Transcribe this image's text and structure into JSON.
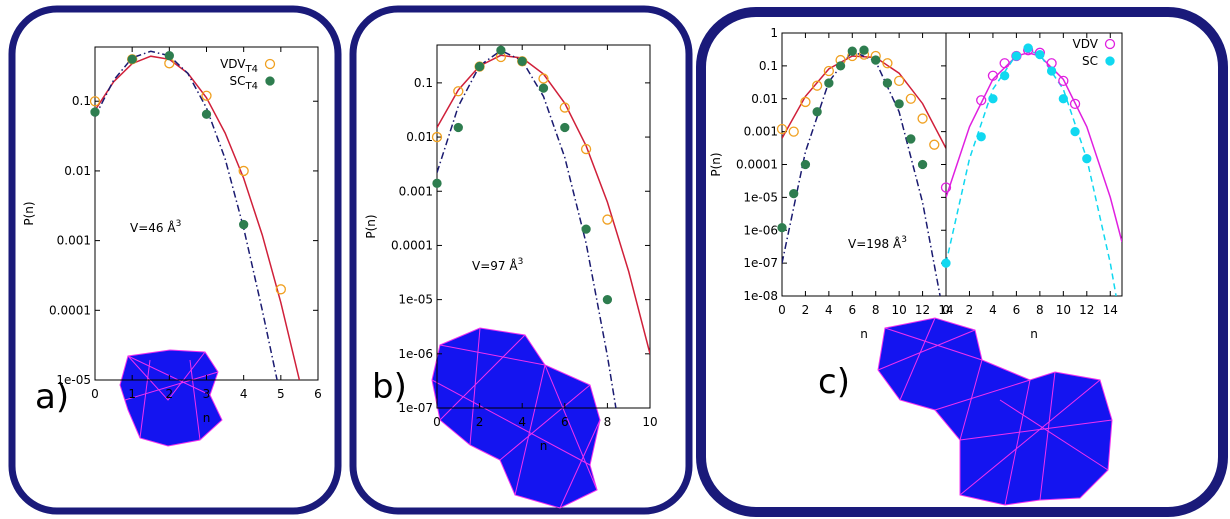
{
  "chart_data": [
    {
      "type": "scatter",
      "panel_label": "a)",
      "annotation": {
        "text": "V=46 Å",
        "sup": "3"
      },
      "xlabel": "n",
      "ylabel": "P(n)",
      "log_y": true,
      "legend": "upper right",
      "xlim": [
        0,
        6
      ],
      "xticks": [
        0,
        1,
        2,
        3,
        4,
        5,
        6
      ],
      "ylim": [
        1e-05,
        0.6
      ],
      "yticks": [
        0.1,
        0.01,
        0.001,
        0.0001,
        {
          "value": 1e-05,
          "label": "1e-05"
        }
      ],
      "series": [
        {
          "name": "VDV",
          "name_sub": "T4",
          "color": "#f0a020",
          "marker": "open",
          "x": [
            0,
            1,
            2,
            3,
            4,
            5
          ],
          "values": [
            0.1,
            0.4,
            0.35,
            0.12,
            0.01,
            0.0002
          ]
        },
        {
          "name": "SC",
          "name_sub": "T4",
          "color": "#2e7d4f",
          "marker": "filled",
          "x": [
            0,
            1,
            2,
            3,
            4
          ],
          "values": [
            0.07,
            0.4,
            0.45,
            0.065,
            0.0017
          ]
        },
        {
          "color": "#d0203a",
          "style": "solid",
          "x": [
            0,
            0.5,
            1,
            1.5,
            2,
            2.5,
            3,
            3.5,
            4,
            4.5,
            5,
            5.5
          ],
          "values": [
            0.074,
            0.19,
            0.347,
            0.443,
            0.4,
            0.252,
            0.112,
            0.035,
            0.0078,
            0.0012,
            0.00013,
            1e-05
          ]
        },
        {
          "color": "#1a1a70",
          "style": "dashdot",
          "x": [
            0,
            0.5,
            1,
            1.5,
            2,
            2.5,
            3,
            3.5,
            4,
            4.5,
            4.9
          ],
          "values": [
            0.06,
            0.2,
            0.42,
            0.52,
            0.45,
            0.25,
            0.08,
            0.015,
            0.0015,
            0.0001,
            1e-05
          ]
        }
      ]
    },
    {
      "type": "scatter",
      "panel_label": "b)",
      "annotation": {
        "text": "V=97 Å",
        "sup": "3"
      },
      "xlabel": "n",
      "ylabel": "P(n)",
      "log_y": true,
      "xlim": [
        0,
        10
      ],
      "xticks": [
        0,
        2,
        4,
        6,
        8,
        10
      ],
      "ylim": [
        1e-07,
        0.5
      ],
      "yticks": [
        0.1,
        0.01,
        0.001,
        0.0001,
        {
          "value": 1e-05,
          "label": "1e-05"
        },
        {
          "value": 1e-06,
          "label": "1e-06"
        },
        {
          "value": 1e-07,
          "label": "1e-07"
        }
      ],
      "series": [
        {
          "color": "#f0a020",
          "marker": "open",
          "x": [
            0,
            1,
            2,
            3,
            4,
            5,
            6,
            7,
            8
          ],
          "values": [
            0.01,
            0.07,
            0.2,
            0.3,
            0.25,
            0.12,
            0.035,
            0.006,
            0.0003
          ]
        },
        {
          "color": "#2e7d4f",
          "marker": "filled",
          "x": [
            0,
            1,
            2,
            3,
            4,
            5,
            6,
            7,
            8
          ],
          "values": [
            0.0014,
            0.015,
            0.2,
            0.4,
            0.25,
            0.08,
            0.015,
            0.0002,
            1e-05
          ]
        },
        {
          "color": "#d0203a",
          "style": "solid",
          "x": [
            0,
            1,
            2,
            3,
            4,
            5,
            6,
            7,
            8,
            9,
            10
          ],
          "values": [
            0.015,
            0.074,
            0.205,
            0.323,
            0.288,
            0.146,
            0.042,
            0.0069,
            0.00063,
            3.3e-05,
            1e-06
          ]
        },
        {
          "color": "#1a1a70",
          "style": "dashdot",
          "x": [
            0,
            1,
            2,
            3,
            4,
            5,
            6,
            7,
            8,
            8.4
          ],
          "values": [
            0.0022,
            0.037,
            0.207,
            0.396,
            0.257,
            0.056,
            0.0042,
            0.00011,
            9.1e-07,
            1e-07
          ]
        }
      ]
    },
    {
      "type": "scatter",
      "panel_label": "c)",
      "annotation": {
        "text": "V=198 Å",
        "sup": "3"
      },
      "xlabel": "n",
      "ylabel": "P(n)",
      "log_y": true,
      "xlim": [
        0,
        14
      ],
      "xticks": [
        0,
        2,
        4,
        6,
        8,
        10,
        12,
        14
      ],
      "ylim": [
        1e-08,
        1
      ],
      "yticks": [
        1,
        0.1,
        0.01,
        0.001,
        0.0001,
        {
          "value": 1e-05,
          "label": "1e-05"
        },
        {
          "value": 1e-06,
          "label": "1e-06"
        },
        {
          "value": 1e-07,
          "label": "1e-07"
        },
        {
          "value": 1e-08,
          "label": "1e-08"
        }
      ],
      "series": [
        {
          "color": "#f0a020",
          "marker": "open",
          "x": [
            0,
            1,
            2,
            3,
            4,
            5,
            6,
            7,
            8,
            9,
            10,
            11,
            12,
            13
          ],
          "values": [
            0.0012,
            0.001,
            0.008,
            0.025,
            0.07,
            0.15,
            0.2,
            0.22,
            0.2,
            0.12,
            0.035,
            0.01,
            0.0025,
            0.0004
          ]
        },
        {
          "color": "#2e7d4f",
          "marker": "filled",
          "x": [
            0,
            1,
            2,
            3,
            4,
            5,
            6,
            7,
            8,
            9,
            10,
            11,
            12
          ],
          "values": [
            1.2e-06,
            1.3e-05,
            0.0001,
            0.004,
            0.03,
            0.1,
            0.28,
            0.3,
            0.15,
            0.03,
            0.007,
            0.0006,
            0.0001
          ]
        },
        {
          "color": "#d0203a",
          "style": "solid",
          "x": [
            0,
            2,
            4,
            6,
            8,
            10,
            12,
            14
          ],
          "values": [
            0.00063,
            0.0118,
            0.081,
            0.2,
            0.18,
            0.06,
            0.0071,
            0.00031
          ]
        },
        {
          "color": "#1a1a70",
          "style": "dashdot",
          "x": [
            0,
            2,
            4,
            6,
            8,
            10,
            12,
            13.5
          ],
          "values": [
            1e-07,
            0.00024,
            0.033,
            0.28,
            0.137,
            0.004,
            7e-06,
            1e-08
          ]
        }
      ]
    },
    {
      "type": "scatter",
      "xlabel": "n",
      "log_y": true,
      "legend": "upper right",
      "xlim": [
        0,
        15
      ],
      "xticks": [
        0,
        2,
        4,
        6,
        8,
        10,
        12,
        14
      ],
      "ylim": [
        1e-08,
        1
      ],
      "series": [
        {
          "name": "VDV",
          "color": "#e020e0",
          "marker": "open",
          "x": [
            0,
            3,
            4,
            5,
            6,
            7,
            8,
            9,
            10,
            11
          ],
          "values": [
            2e-05,
            0.009,
            0.05,
            0.12,
            0.2,
            0.3,
            0.25,
            0.12,
            0.035,
            0.007
          ]
        },
        {
          "name": "SC",
          "color": "#10d8f0",
          "marker": "filled",
          "x": [
            0,
            3,
            4,
            5,
            6,
            7,
            8,
            9,
            10,
            11,
            12
          ],
          "values": [
            1e-07,
            0.0007,
            0.01,
            0.05,
            0.2,
            0.35,
            0.22,
            0.07,
            0.01,
            0.001,
            0.00015
          ]
        },
        {
          "color": "#e020e0",
          "style": "solid",
          "x": [
            0,
            2,
            4,
            6,
            7,
            8,
            10,
            12,
            14,
            15
          ],
          "values": [
            1e-05,
            0.0014,
            0.039,
            0.2,
            0.25,
            0.2,
            0.039,
            0.0014,
            1e-05,
            4.4e-07
          ]
        },
        {
          "color": "#10d8f0",
          "style": "dashed",
          "x": [
            0,
            2,
            4,
            6,
            7,
            8,
            10,
            12,
            14,
            14.5
          ],
          "values": [
            1e-07,
            0.00015,
            0.0195,
            0.22,
            0.3,
            0.22,
            0.0195,
            0.00015,
            1e-07,
            1e-08
          ]
        }
      ]
    }
  ]
}
